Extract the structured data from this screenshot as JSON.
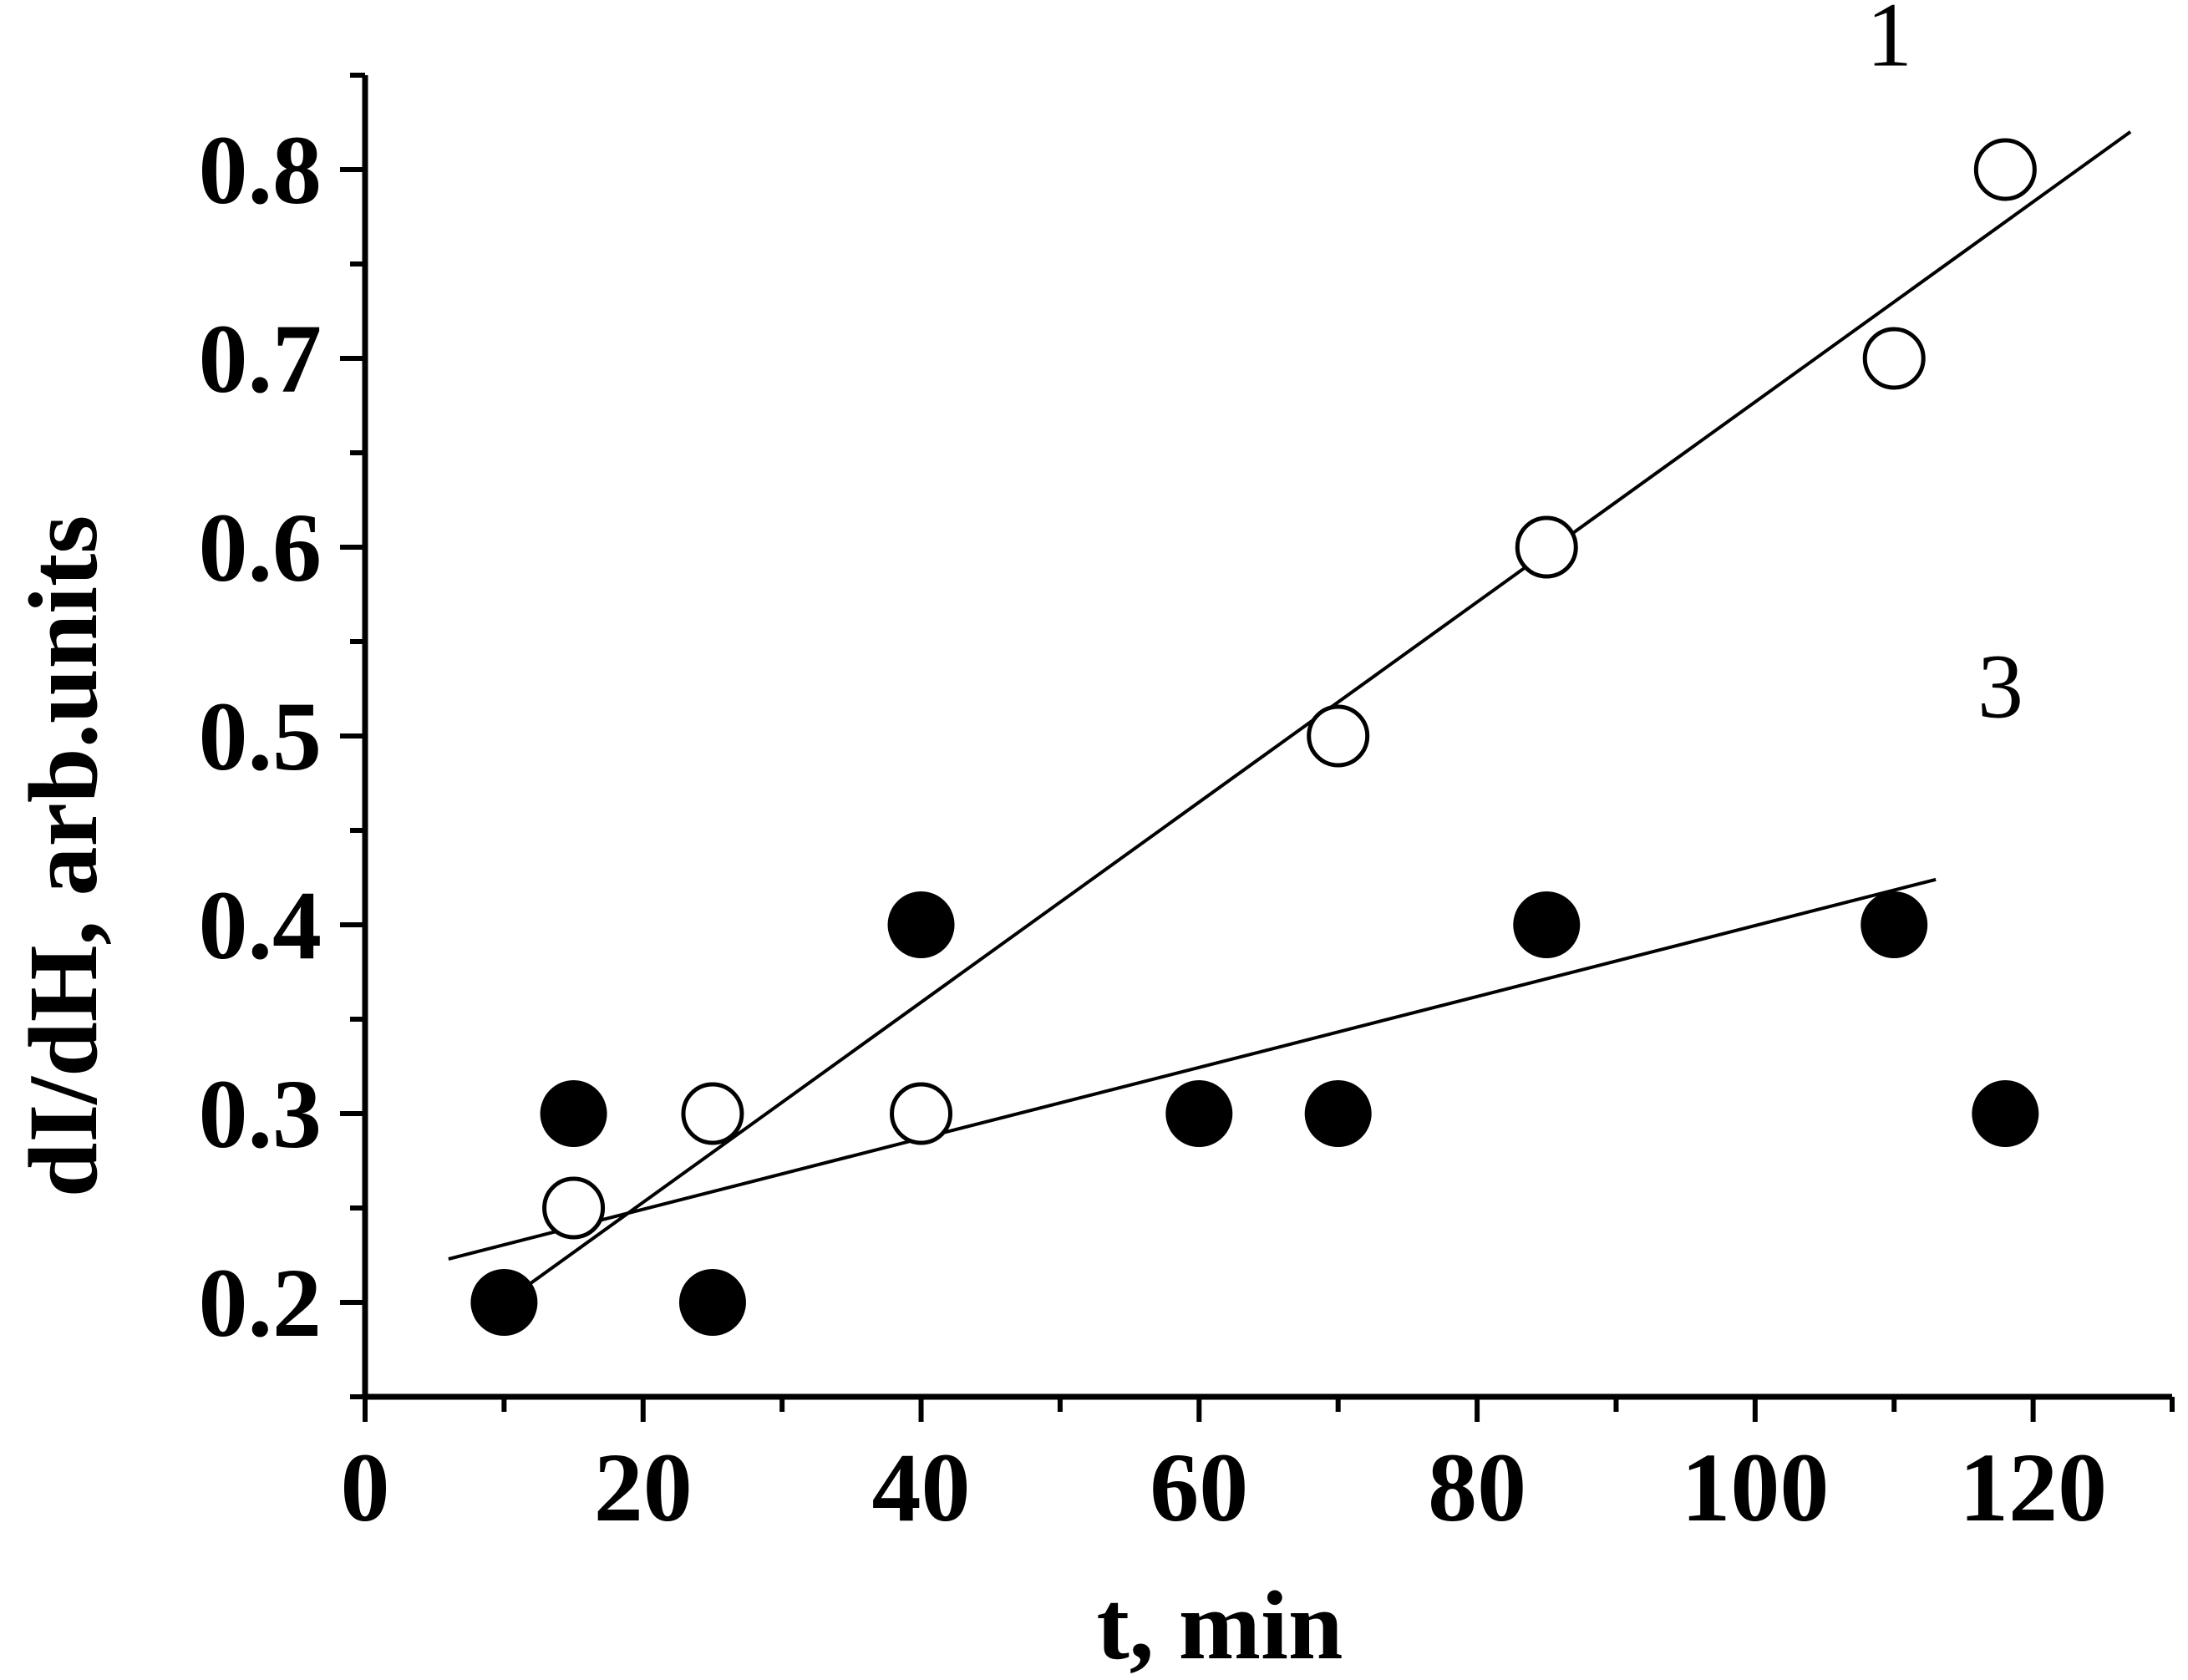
{
  "chart_data": {
    "type": "scatter",
    "title": "",
    "xlabel": "t, min",
    "ylabel": "dI/dH, arb.units",
    "xlim": [
      0,
      130
    ],
    "ylim": [
      0.15,
      0.85
    ],
    "xticks": [
      0,
      20,
      40,
      60,
      80,
      100,
      120
    ],
    "yticks": [
      0.2,
      0.3,
      0.4,
      0.5,
      0.6,
      0.7,
      0.8
    ],
    "xtick_labels": [
      "0",
      "20",
      "40",
      "60",
      "80",
      "100",
      "120"
    ],
    "ytick_labels": [
      "0.2",
      "0.3",
      "0.4",
      "0.5",
      "0.6",
      "0.7",
      "0.8"
    ],
    "grid": false,
    "series": [
      {
        "name": "1",
        "marker": "open-circle",
        "x": [
          15,
          25,
          40,
          70,
          85,
          110,
          118
        ],
        "y": [
          0.25,
          0.3,
          0.3,
          0.5,
          0.6,
          0.7,
          0.8
        ],
        "fit": {
          "x": [
            10,
            127
          ],
          "y": [
            0.2,
            0.82
          ]
        },
        "label_at": {
          "x": 108,
          "y": 0.855
        }
      },
      {
        "name": "3",
        "marker": "filled-circle",
        "x": [
          10,
          15,
          25,
          40,
          60,
          70,
          85,
          110,
          118
        ],
        "y": [
          0.2,
          0.3,
          0.2,
          0.4,
          0.3,
          0.3,
          0.4,
          0.4,
          0.3
        ],
        "fit": {
          "x": [
            6,
            113
          ],
          "y": [
            0.223,
            0.424
          ]
        },
        "label_at": {
          "x": 116,
          "y": 0.51
        }
      }
    ]
  },
  "colors": {
    "ink": "#000000",
    "background": "#ffffff"
  }
}
